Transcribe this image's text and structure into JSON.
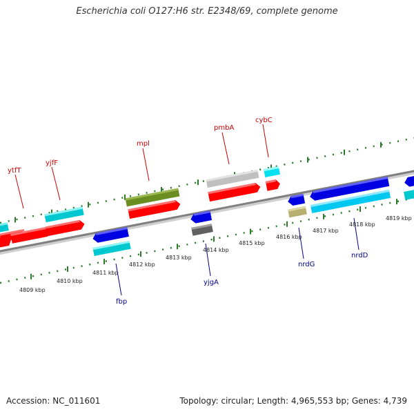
{
  "title": "Escherichia coli O127:H6 str. E2348/69, complete genome",
  "footer": {
    "accession": "Accession: NC_011601",
    "topology": "Topology: circular; Length: 4,965,553 bp; Genes: 4,739"
  },
  "colors": {
    "forward_label": "#cc0000",
    "reverse_label": "#00008b",
    "backbone": "#888888",
    "tick": "#2a7a2a"
  },
  "scale_labels": [
    "4809 kbp",
    "4810 kbp",
    "4811 kbp",
    "4812 kbp",
    "4813 kbp",
    "4814 kbp",
    "4815 kbp",
    "4816 kbp",
    "4817 kbp",
    "4818 kbp",
    "4819 kbp"
  ],
  "genes_forward": [
    "ytfT",
    "yjfF",
    "mpl",
    "pmbA",
    "cybC"
  ],
  "genes_reverse": [
    "fbp",
    "yjgA",
    "nrdG",
    "nrdD"
  ]
}
